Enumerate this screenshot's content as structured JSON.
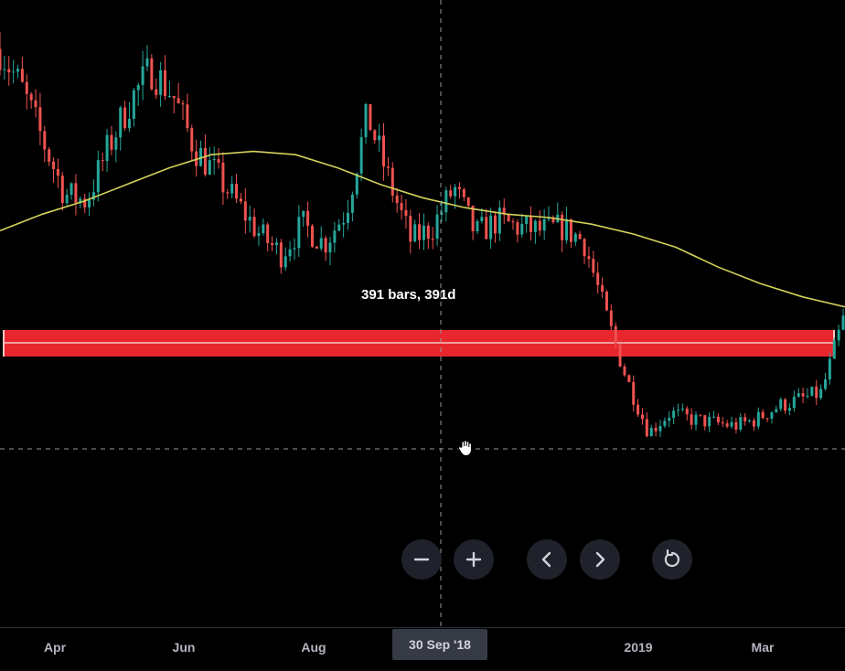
{
  "chart_data": {
    "type": "candlestick",
    "moving_average": {
      "color": "#d4d25a",
      "values": [
        6450,
        6700,
        6900,
        7150,
        7400,
        7600,
        7650,
        7600,
        7400,
        7150,
        6950,
        6800,
        6700,
        6650,
        6550,
        6400,
        6200,
        5900,
        5650,
        5450,
        5300
      ]
    },
    "price_series": [
      9200,
      8600,
      7800,
      7000,
      6900,
      7700,
      8400,
      8900,
      8500,
      7700,
      7300,
      6850,
      6400,
      6100,
      6550,
      6250,
      6750,
      8200,
      7200,
      6300,
      6500,
      7100,
      6400,
      6600,
      6500,
      6450,
      6500,
      6300,
      5200,
      4200,
      3400,
      3700,
      3600,
      3550,
      3500,
      3600,
      3800,
      3900,
      4000,
      5100
    ],
    "horizontal_zone": {
      "color": "#e8262d",
      "label": ""
    },
    "crosshair": {
      "date_label": "30 Sep '18"
    },
    "measure": {
      "label": "391 bars, 391d"
    },
    "x_ticks": [
      "Apr",
      "Jun",
      "Aug",
      "2019",
      "Mar"
    ],
    "bullish_color": "#26a69a",
    "bearish_color": "#ef5350"
  },
  "controls": {
    "zoom_out": "zoom-out",
    "zoom_in": "zoom-in",
    "scroll_left": "scroll-left",
    "scroll_right": "scroll-right",
    "reset": "reset-chart"
  }
}
